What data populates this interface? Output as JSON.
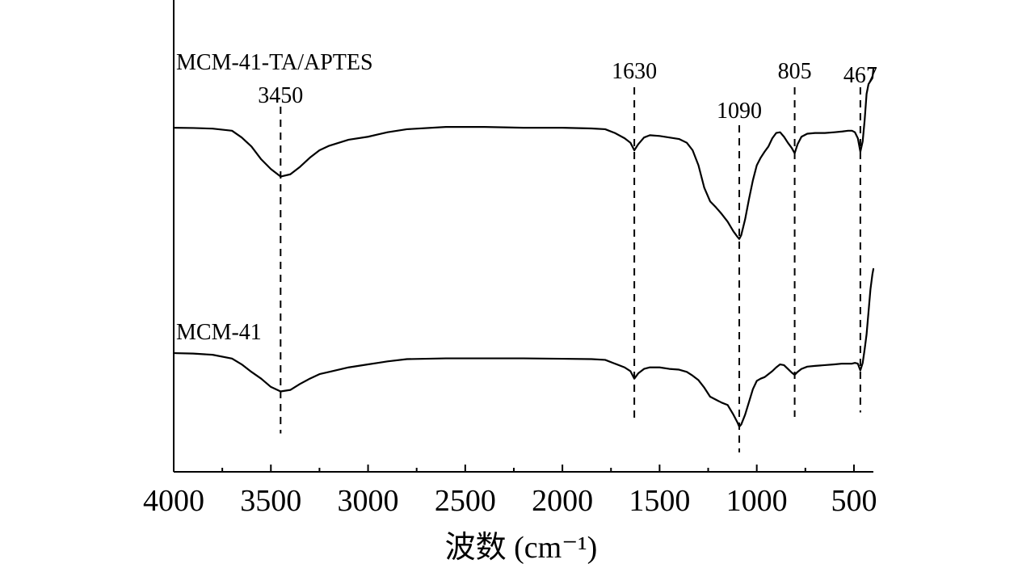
{
  "chart_data": {
    "type": "line",
    "title": "",
    "xlabel": "波数 (cm⁻¹)",
    "ylabel": "",
    "x_axis": {
      "reversed": true,
      "xlim": [
        4000,
        400
      ],
      "ticks": [
        4000,
        3500,
        3000,
        2500,
        2000,
        1500,
        1000,
        500
      ]
    },
    "y_axis": {
      "ticks_shown": false,
      "units": "relative transmittance (arbitrary, offset)"
    },
    "grid": false,
    "legend": "none (series labeled directly on plot)",
    "line_color": "#000000",
    "series": [
      {
        "name": "MCM-41-TA/APTES",
        "offset": 0,
        "points": [
          [
            4000,
            0
          ],
          [
            3900,
            -0.4
          ],
          [
            3800,
            -1.2
          ],
          [
            3700,
            -4
          ],
          [
            3650,
            -13
          ],
          [
            3600,
            -25
          ],
          [
            3550,
            -42
          ],
          [
            3500,
            -55
          ],
          [
            3450,
            -65
          ],
          [
            3400,
            -62
          ],
          [
            3350,
            -52
          ],
          [
            3300,
            -40
          ],
          [
            3250,
            -30
          ],
          [
            3200,
            -24
          ],
          [
            3100,
            -16
          ],
          [
            3000,
            -12
          ],
          [
            2950,
            -9
          ],
          [
            2900,
            -6
          ],
          [
            2800,
            -2
          ],
          [
            2600,
            1
          ],
          [
            2400,
            1
          ],
          [
            2200,
            0
          ],
          [
            2000,
            0
          ],
          [
            1850,
            -1
          ],
          [
            1780,
            -2
          ],
          [
            1730,
            -7
          ],
          [
            1680,
            -14
          ],
          [
            1650,
            -20
          ],
          [
            1630,
            -30
          ],
          [
            1610,
            -22
          ],
          [
            1580,
            -13
          ],
          [
            1550,
            -10
          ],
          [
            1500,
            -11
          ],
          [
            1450,
            -13
          ],
          [
            1400,
            -15
          ],
          [
            1360,
            -20
          ],
          [
            1330,
            -30
          ],
          [
            1300,
            -50
          ],
          [
            1270,
            -80
          ],
          [
            1240,
            -98
          ],
          [
            1210,
            -106
          ],
          [
            1180,
            -115
          ],
          [
            1150,
            -125
          ],
          [
            1120,
            -138
          ],
          [
            1100,
            -145
          ],
          [
            1090,
            -148
          ],
          [
            1080,
            -143
          ],
          [
            1060,
            -122
          ],
          [
            1040,
            -95
          ],
          [
            1020,
            -70
          ],
          [
            1000,
            -50
          ],
          [
            980,
            -40
          ],
          [
            960,
            -32
          ],
          [
            940,
            -25
          ],
          [
            920,
            -14
          ],
          [
            900,
            -7
          ],
          [
            880,
            -6
          ],
          [
            860,
            -12
          ],
          [
            840,
            -20
          ],
          [
            820,
            -27
          ],
          [
            805,
            -34
          ],
          [
            790,
            -22
          ],
          [
            770,
            -12
          ],
          [
            740,
            -8
          ],
          [
            700,
            -7
          ],
          [
            650,
            -7
          ],
          [
            600,
            -6
          ],
          [
            560,
            -5
          ],
          [
            530,
            -4
          ],
          [
            510,
            -4
          ],
          [
            495,
            -6
          ],
          [
            480,
            -14
          ],
          [
            467,
            -32
          ],
          [
            455,
            -18
          ],
          [
            445,
            10
          ],
          [
            435,
            45
          ],
          [
            425,
            58
          ],
          [
            415,
            62
          ],
          [
            405,
            66
          ],
          [
            400,
            78
          ]
        ]
      },
      {
        "name": "MCM-41",
        "offset": -300,
        "points": [
          [
            4000,
            0
          ],
          [
            3900,
            -0.6
          ],
          [
            3800,
            -2.2
          ],
          [
            3700,
            -7.2
          ],
          [
            3650,
            -15
          ],
          [
            3600,
            -25
          ],
          [
            3550,
            -34
          ],
          [
            3500,
            -45
          ],
          [
            3450,
            -51
          ],
          [
            3400,
            -49
          ],
          [
            3350,
            -41
          ],
          [
            3300,
            -34
          ],
          [
            3250,
            -28
          ],
          [
            3200,
            -25
          ],
          [
            3100,
            -19
          ],
          [
            3000,
            -15
          ],
          [
            2950,
            -13
          ],
          [
            2900,
            -11
          ],
          [
            2800,
            -8
          ],
          [
            2600,
            -7
          ],
          [
            2400,
            -7
          ],
          [
            2200,
            -7
          ],
          [
            2000,
            -7.5
          ],
          [
            1850,
            -8
          ],
          [
            1780,
            -9
          ],
          [
            1730,
            -14
          ],
          [
            1680,
            -19
          ],
          [
            1650,
            -24
          ],
          [
            1630,
            -34
          ],
          [
            1610,
            -27
          ],
          [
            1580,
            -21
          ],
          [
            1550,
            -19
          ],
          [
            1500,
            -19
          ],
          [
            1450,
            -21
          ],
          [
            1400,
            -22
          ],
          [
            1360,
            -25
          ],
          [
            1330,
            -30
          ],
          [
            1300,
            -36
          ],
          [
            1270,
            -46
          ],
          [
            1240,
            -58
          ],
          [
            1210,
            -62
          ],
          [
            1180,
            -66
          ],
          [
            1150,
            -69
          ],
          [
            1120,
            -82
          ],
          [
            1100,
            -92
          ],
          [
            1090,
            -98
          ],
          [
            1080,
            -95
          ],
          [
            1060,
            -82
          ],
          [
            1040,
            -65
          ],
          [
            1020,
            -48
          ],
          [
            1000,
            -37
          ],
          [
            980,
            -34
          ],
          [
            960,
            -32
          ],
          [
            940,
            -28
          ],
          [
            920,
            -24
          ],
          [
            900,
            -19
          ],
          [
            880,
            -15
          ],
          [
            860,
            -16
          ],
          [
            840,
            -21
          ],
          [
            820,
            -26
          ],
          [
            805,
            -29
          ],
          [
            790,
            -25
          ],
          [
            770,
            -21
          ],
          [
            740,
            -18
          ],
          [
            700,
            -17
          ],
          [
            650,
            -16
          ],
          [
            600,
            -15
          ],
          [
            560,
            -14
          ],
          [
            530,
            -14
          ],
          [
            510,
            -14
          ],
          [
            495,
            -13
          ],
          [
            480,
            -14
          ],
          [
            467,
            -23
          ],
          [
            455,
            -13
          ],
          [
            445,
            5
          ],
          [
            435,
            25
          ],
          [
            425,
            55
          ],
          [
            415,
            85
          ],
          [
            405,
            105
          ],
          [
            400,
            112
          ]
        ]
      }
    ],
    "y_range": [
      -458,
      170
    ],
    "annotations": [
      {
        "label": "3450",
        "x": 3450
      },
      {
        "label": "1630",
        "x": 1630
      },
      {
        "label": "1090",
        "x": 1090
      },
      {
        "label": "805",
        "x": 805
      },
      {
        "label": "467",
        "x": 467
      }
    ]
  }
}
